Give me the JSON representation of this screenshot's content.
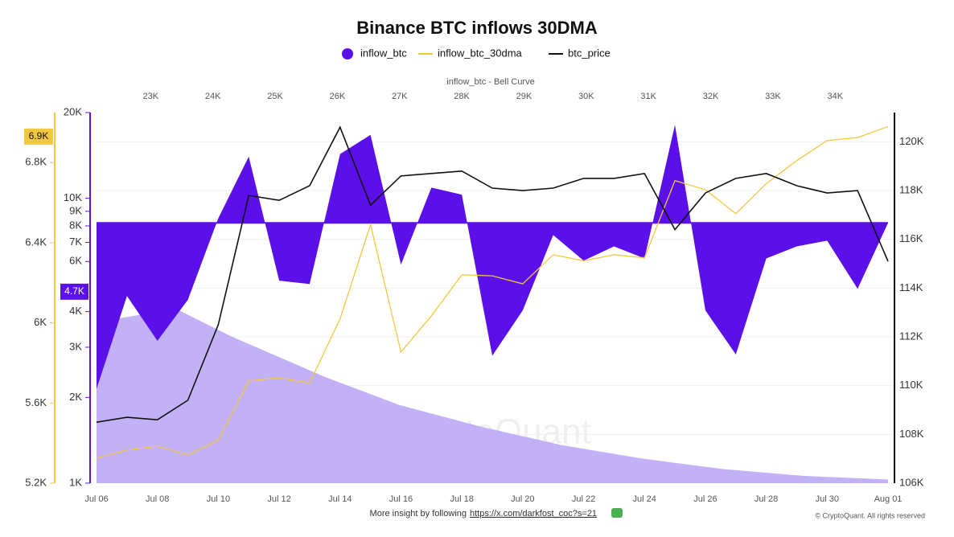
{
  "chart_data": {
    "type": "combo",
    "title": "Binance BTC inflows 30DMA",
    "x2label": "inflow_btc - Bell Curve",
    "watermark": "CryptoQuant",
    "categories": [
      "Jul 06",
      null,
      "Jul 08",
      null,
      "Jul 10",
      null,
      "Jul 12",
      null,
      "Jul 14",
      null,
      "Jul 16",
      null,
      "Jul 18",
      null,
      "Jul 20",
      null,
      "Jul 22",
      null,
      "Jul 24",
      null,
      "Jul 26",
      null,
      "Jul 28",
      null,
      "Jul 30",
      null,
      "Aug 01"
    ],
    "ylim": [
      5200,
      7050
    ],
    "yticks": [
      {
        "value": 5200,
        "label": "5.2K"
      },
      {
        "value": 5600,
        "label": "5.6K"
      },
      {
        "value": 6000,
        "label": "6K"
      },
      {
        "value": 6400,
        "label": "6.4K"
      },
      {
        "value": 6800,
        "label": "6.8K"
      }
    ],
    "y3lim": [
      1000,
      20000
    ],
    "y3log": true,
    "y3ticks": [
      {
        "value": 1000,
        "label": "1K"
      },
      {
        "value": 2000,
        "label": "2K"
      },
      {
        "value": 3000,
        "label": "3K"
      },
      {
        "value": 4000,
        "label": "4K"
      },
      {
        "value": 6000,
        "label": "6K"
      },
      {
        "value": 7000,
        "label": "7K"
      },
      {
        "value": 8000,
        "label": "8K"
      },
      {
        "value": 9000,
        "label": "9K"
      },
      {
        "value": 10000,
        "label": "10K"
      },
      {
        "value": 20000,
        "label": "20K"
      }
    ],
    "y2lim": [
      106000,
      121200
    ],
    "y2ticks": [
      {
        "value": 106000,
        "label": "106K"
      },
      {
        "value": 108000,
        "label": "108K"
      },
      {
        "value": 110000,
        "label": "110K"
      },
      {
        "value": 112000,
        "label": "112K"
      },
      {
        "value": 114000,
        "label": "114K"
      },
      {
        "value": 116000,
        "label": "116K"
      },
      {
        "value": 118000,
        "label": "118K"
      },
      {
        "value": 120000,
        "label": "120K"
      }
    ],
    "x2lim": [
      22130,
      34850
    ],
    "x2ticks": [
      {
        "value": 23000,
        "label": "23K"
      },
      {
        "value": 24000,
        "label": "24K"
      },
      {
        "value": 25000,
        "label": "25K"
      },
      {
        "value": 26000,
        "label": "26K"
      },
      {
        "value": 27000,
        "label": "27K"
      },
      {
        "value": 28000,
        "label": "28K"
      },
      {
        "value": 29000,
        "label": "29K"
      },
      {
        "value": 30000,
        "label": "30K"
      },
      {
        "value": 31000,
        "label": "31K"
      },
      {
        "value": 32000,
        "label": "32K"
      },
      {
        "value": 33000,
        "label": "33K"
      },
      {
        "value": 34000,
        "label": "34K"
      }
    ],
    "grid": true,
    "series": [
      {
        "name": "inflow_btc",
        "type": "baseline-area",
        "axis": "y3",
        "color": "#5b10ea",
        "baseline": 8200,
        "highlight": {
          "value": 4700,
          "label": "4.7K"
        },
        "values": [
          2140,
          4540,
          3160,
          4400,
          8510,
          14000,
          5140,
          5000,
          14300,
          16700,
          5850,
          10900,
          10300,
          2800,
          4040,
          7430,
          6040,
          6780,
          6150,
          18100,
          4040,
          2830,
          6150,
          6780,
          7100,
          4810,
          8200
        ]
      },
      {
        "name": "inflow_btc_30dma",
        "type": "line",
        "axis": "y",
        "color": "#f2c744",
        "highlight": {
          "value": 6930,
          "label": "6.9K"
        },
        "values": [
          5325,
          5365,
          5385,
          5340,
          5415,
          5710,
          5725,
          5700,
          6020,
          6490,
          5855,
          6035,
          6240,
          6235,
          6195,
          6340,
          6310,
          6340,
          6325,
          6710,
          6665,
          6545,
          6695,
          6810,
          6910,
          6925,
          6980
        ]
      },
      {
        "name": "btc_price",
        "type": "line",
        "axis": "y2",
        "color": "#111111",
        "values": [
          108500,
          108700,
          108600,
          109400,
          112500,
          117800,
          117600,
          118200,
          120600,
          117400,
          118600,
          118700,
          118800,
          118100,
          118000,
          118100,
          118500,
          118500,
          118700,
          116400,
          117900,
          118500,
          118700,
          118200,
          117900,
          118000,
          115100
        ]
      }
    ],
    "bell_curve": {
      "color": "#bca8f6",
      "x": [
        22130,
        23400,
        24300,
        25800,
        27000,
        28300,
        29600,
        30900,
        32200,
        33500,
        34850
      ],
      "values": [
        3670,
        4100,
        3270,
        2360,
        1880,
        1580,
        1360,
        1220,
        1120,
        1060,
        1030
      ]
    }
  },
  "footer": {
    "text": "More insight by following",
    "link": "https://x.com/darkfost_coc?s=21",
    "copyright": "© CryptoQuant. All rights reserved"
  }
}
